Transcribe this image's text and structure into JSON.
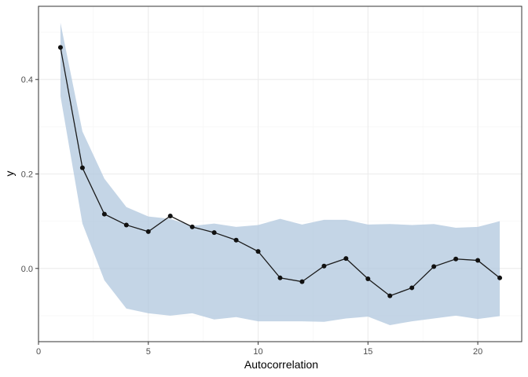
{
  "chart_data": {
    "type": "line",
    "title": "",
    "xlabel": "Autocorrelation",
    "ylabel": "y",
    "xlim": [
      0,
      22.0
    ],
    "ylim": [
      -0.155,
      0.555
    ],
    "x_ticks": [
      0,
      5,
      10,
      15,
      20
    ],
    "x_tick_labels": [
      "0",
      "5",
      "10",
      "15",
      "20"
    ],
    "y_ticks": [
      0.0,
      0.2,
      0.4
    ],
    "y_tick_labels": [
      "0.0",
      "0.2",
      "0.4"
    ],
    "grid": true,
    "legend": "none",
    "series": [
      {
        "x": [
          1,
          2,
          3,
          4,
          5,
          6,
          7,
          8,
          9,
          10,
          11,
          12,
          13,
          14,
          15,
          16,
          17,
          18,
          19,
          20,
          21
        ],
        "values": [
          0.468,
          0.213,
          0.115,
          0.092,
          0.078,
          0.111,
          0.088,
          0.076,
          0.06,
          0.036,
          -0.02,
          -0.028,
          0.005,
          0.021,
          -0.022,
          -0.058,
          -0.041,
          0.004,
          0.02,
          0.017,
          -0.02
        ],
        "band_upper": [
          0.52,
          0.29,
          0.19,
          0.13,
          0.11,
          0.105,
          0.09,
          0.095,
          0.088,
          0.092,
          0.105,
          0.093,
          0.103,
          0.103,
          0.093,
          0.094,
          0.092,
          0.094,
          0.086,
          0.088,
          0.1
        ],
        "band_lower": [
          0.365,
          0.095,
          -0.025,
          -0.085,
          -0.095,
          -0.1,
          -0.095,
          -0.108,
          -0.103,
          -0.112,
          -0.112,
          -0.112,
          -0.113,
          -0.106,
          -0.102,
          -0.12,
          -0.112,
          -0.106,
          -0.1,
          -0.107,
          -0.101
        ]
      }
    ],
    "colors": {
      "line": "#1a1a1a",
      "point": "#111111",
      "band": "#b0c7de",
      "grid_major": "#ebebeb",
      "grid_minor": "#f5f5f5",
      "panel_border": "#333333"
    }
  }
}
